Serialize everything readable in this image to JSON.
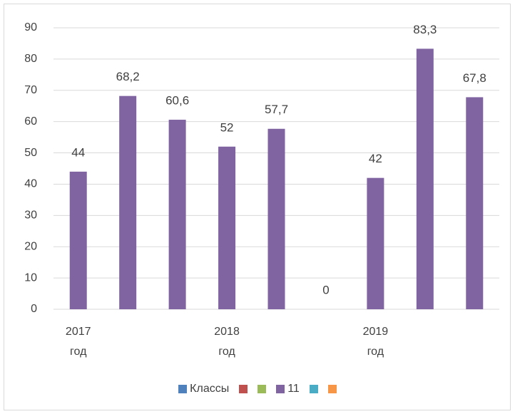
{
  "chart_data": {
    "type": "bar",
    "categories": [
      "2017 год",
      null,
      null,
      "2018 год",
      null,
      null,
      "2019 год",
      null,
      null
    ],
    "series": [
      {
        "name": "Классы",
        "color": "#4f81bd",
        "values": [
          null,
          null,
          null,
          null,
          null,
          null,
          null,
          null,
          null
        ]
      },
      {
        "name": null,
        "color": "#c0504d",
        "values": [
          null,
          null,
          null,
          null,
          null,
          null,
          null,
          null,
          null
        ]
      },
      {
        "name": null,
        "color": "#9bbb59",
        "values": [
          null,
          null,
          null,
          null,
          null,
          null,
          null,
          null,
          null
        ]
      },
      {
        "name": "11",
        "color": "#8064a2",
        "values": [
          44,
          68.2,
          60.6,
          52,
          57.7,
          0,
          42,
          83.3,
          67.8
        ],
        "value_labels": [
          "44",
          "68,2",
          "60,6",
          "52",
          "57,7",
          "0",
          "42",
          "83,3",
          "67,8"
        ]
      },
      {
        "name": null,
        "color": "#4bacc6",
        "values": [
          null,
          null,
          null,
          null,
          null,
          null,
          null,
          null,
          null
        ]
      },
      {
        "name": null,
        "color": "#f79646",
        "values": [
          null,
          null,
          null,
          null,
          null,
          null,
          null,
          null,
          null
        ]
      }
    ],
    "ylim": [
      0,
      90
    ],
    "yticks": [
      0,
      10,
      20,
      30,
      40,
      50,
      60,
      70,
      80,
      90
    ],
    "grid": true,
    "legend": "bottom"
  }
}
